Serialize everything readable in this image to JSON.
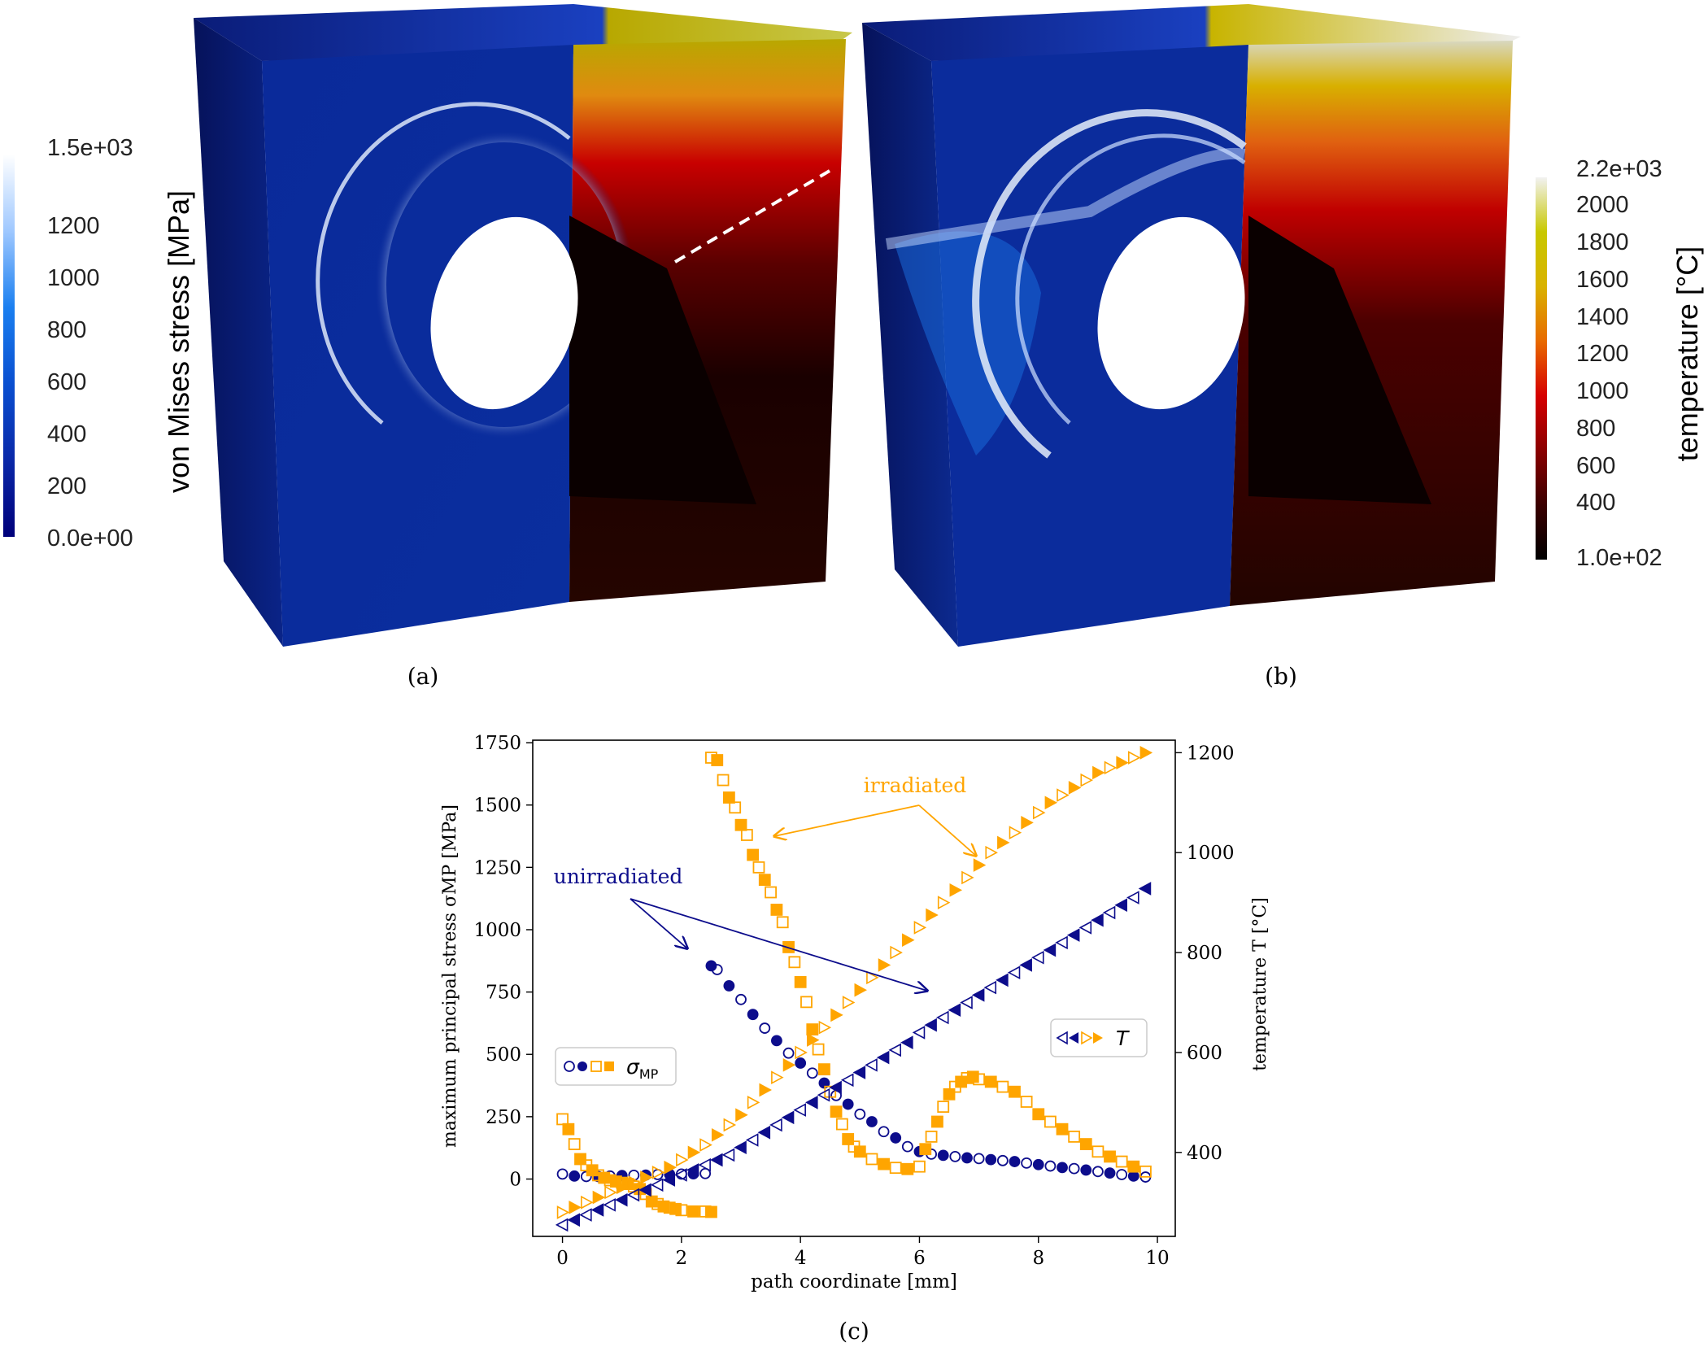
{
  "panel_a": {
    "caption": "(a)",
    "colorbar": {
      "title": "von Mises stress [MPa]",
      "min_label": "0.0e+00",
      "max_label": "1.5e+03",
      "ticks": [
        "1200",
        "1000",
        "800",
        "600",
        "400",
        "200"
      ],
      "colors": [
        "#00007a",
        "#0a28a8",
        "#0a4fd0",
        "#1a7ff0",
        "#9fc8ff",
        "#ffffff"
      ]
    }
  },
  "panel_b": {
    "caption": "(b)",
    "colorbar": {
      "title": "temperature [°C]",
      "min_label": "1.0e+02",
      "max_label": "2.2e+03",
      "ticks": [
        "2000",
        "1800",
        "1600",
        "1400",
        "1200",
        "1000",
        "800",
        "600",
        "400"
      ],
      "colors": [
        "#000000",
        "#3a0000",
        "#8a0000",
        "#d60000",
        "#e86a00",
        "#d9b200",
        "#c8c800",
        "#f2f2f2"
      ]
    }
  },
  "panel_c": {
    "caption": "(c)",
    "annotations": {
      "irradiated": "irradiated",
      "unirradiated": "unirradiated"
    },
    "legend_sigma": "σMP",
    "legend_T": "T"
  },
  "colors": {
    "unirradiated": "#0d0d8c",
    "irradiated": "#ffa500"
  },
  "chart_data": {
    "type": "scatter",
    "xlabel": "path coordinate [mm]",
    "ylabel": "maximum principal stress σMP [MPa]",
    "y2label": "temperature T [°C]",
    "xlim": [
      -0.5,
      10.3
    ],
    "ylim": [
      -230,
      1760
    ],
    "y2lim": [
      232,
      1225
    ],
    "xticks": [
      "0",
      "2",
      "4",
      "6",
      "8",
      "10"
    ],
    "yticks": [
      "0",
      "250",
      "500",
      "750",
      "1000",
      "1250",
      "1500",
      "1750"
    ],
    "y2ticks": [
      "400",
      "600",
      "800",
      "1000",
      "1200"
    ],
    "grid": false,
    "legend": [
      "center-left",
      "center-right"
    ],
    "series": [
      {
        "axis": "left",
        "marker": "circle",
        "color": "#0d0d8c",
        "points": [
          [
            0,
            20
          ],
          [
            0.2,
            12
          ],
          [
            0.4,
            10
          ],
          [
            0.6,
            10
          ],
          [
            0.8,
            12
          ],
          [
            1.0,
            14
          ],
          [
            1.2,
            15
          ],
          [
            1.4,
            16
          ],
          [
            1.6,
            18
          ],
          [
            1.8,
            19
          ],
          [
            2.0,
            20
          ],
          [
            2.2,
            21
          ],
          [
            2.4,
            22
          ],
          [
            2.5,
            855
          ],
          [
            2.6,
            840
          ],
          [
            2.8,
            775
          ],
          [
            3.0,
            720
          ],
          [
            3.2,
            660
          ],
          [
            3.4,
            605
          ],
          [
            3.6,
            555
          ],
          [
            3.8,
            505
          ],
          [
            4.0,
            465
          ],
          [
            4.2,
            425
          ],
          [
            4.4,
            385
          ],
          [
            4.6,
            335
          ],
          [
            4.8,
            300
          ],
          [
            5.0,
            260
          ],
          [
            5.2,
            230
          ],
          [
            5.4,
            190
          ],
          [
            5.6,
            165
          ],
          [
            5.8,
            130
          ],
          [
            6.0,
            110
          ],
          [
            6.2,
            100
          ],
          [
            6.4,
            95
          ],
          [
            6.6,
            90
          ],
          [
            6.8,
            85
          ],
          [
            7.0,
            82
          ],
          [
            7.2,
            78
          ],
          [
            7.4,
            74
          ],
          [
            7.6,
            70
          ],
          [
            7.8,
            64
          ],
          [
            8.0,
            58
          ],
          [
            8.2,
            52
          ],
          [
            8.4,
            46
          ],
          [
            8.6,
            42
          ],
          [
            8.8,
            36
          ],
          [
            9.0,
            30
          ],
          [
            9.2,
            24
          ],
          [
            9.4,
            18
          ],
          [
            9.6,
            12
          ],
          [
            9.8,
            8
          ]
        ]
      },
      {
        "axis": "left",
        "marker": "square",
        "color": "#ffa500",
        "points": [
          [
            0,
            240
          ],
          [
            0.1,
            200
          ],
          [
            0.2,
            140
          ],
          [
            0.3,
            80
          ],
          [
            0.4,
            55
          ],
          [
            0.5,
            35
          ],
          [
            0.6,
            15
          ],
          [
            0.7,
            5
          ],
          [
            0.8,
            -5
          ],
          [
            0.9,
            -10
          ],
          [
            1.0,
            -15
          ],
          [
            1.1,
            -20
          ],
          [
            1.2,
            -30
          ],
          [
            1.3,
            -40
          ],
          [
            1.4,
            -60
          ],
          [
            1.5,
            -90
          ],
          [
            1.6,
            -100
          ],
          [
            1.7,
            -110
          ],
          [
            1.8,
            -115
          ],
          [
            1.9,
            -120
          ],
          [
            2.0,
            -125
          ],
          [
            2.2,
            -130
          ],
          [
            2.4,
            -130
          ],
          [
            2.5,
            -132
          ],
          [
            2.5,
            1690
          ],
          [
            2.6,
            1680
          ],
          [
            2.7,
            1600
          ],
          [
            2.8,
            1530
          ],
          [
            2.9,
            1490
          ],
          [
            3.0,
            1420
          ],
          [
            3.1,
            1380
          ],
          [
            3.2,
            1300
          ],
          [
            3.3,
            1250
          ],
          [
            3.4,
            1200
          ],
          [
            3.5,
            1150
          ],
          [
            3.6,
            1080
          ],
          [
            3.7,
            1030
          ],
          [
            3.8,
            930
          ],
          [
            3.9,
            870
          ],
          [
            4.0,
            790
          ],
          [
            4.1,
            710
          ],
          [
            4.2,
            600
          ],
          [
            4.3,
            520
          ],
          [
            4.4,
            440
          ],
          [
            4.5,
            350
          ],
          [
            4.6,
            270
          ],
          [
            4.7,
            220
          ],
          [
            4.8,
            160
          ],
          [
            4.9,
            130
          ],
          [
            5.0,
            110
          ],
          [
            5.2,
            80
          ],
          [
            5.4,
            60
          ],
          [
            5.6,
            45
          ],
          [
            5.8,
            40
          ],
          [
            6.0,
            50
          ],
          [
            6.1,
            120
          ],
          [
            6.2,
            170
          ],
          [
            6.3,
            230
          ],
          [
            6.4,
            290
          ],
          [
            6.5,
            340
          ],
          [
            6.6,
            370
          ],
          [
            6.7,
            390
          ],
          [
            6.8,
            405
          ],
          [
            6.9,
            410
          ],
          [
            7.0,
            400
          ],
          [
            7.2,
            390
          ],
          [
            7.4,
            370
          ],
          [
            7.6,
            350
          ],
          [
            7.8,
            310
          ],
          [
            8.0,
            260
          ],
          [
            8.2,
            230
          ],
          [
            8.4,
            200
          ],
          [
            8.6,
            170
          ],
          [
            8.8,
            140
          ],
          [
            9.0,
            110
          ],
          [
            9.2,
            90
          ],
          [
            9.4,
            70
          ],
          [
            9.6,
            50
          ],
          [
            9.8,
            30
          ]
        ]
      },
      {
        "axis": "right",
        "marker": "triangle",
        "color": "#0d0d8c",
        "points": [
          [
            0,
            255
          ],
          [
            0.2,
            265
          ],
          [
            0.4,
            275
          ],
          [
            0.6,
            285
          ],
          [
            0.8,
            295
          ],
          [
            1.0,
            305
          ],
          [
            1.2,
            315
          ],
          [
            1.4,
            325
          ],
          [
            1.6,
            335
          ],
          [
            1.8,
            345
          ],
          [
            2.0,
            355
          ],
          [
            2.2,
            365
          ],
          [
            2.4,
            375
          ],
          [
            2.6,
            385
          ],
          [
            2.8,
            395
          ],
          [
            3.0,
            410
          ],
          [
            3.2,
            425
          ],
          [
            3.4,
            440
          ],
          [
            3.6,
            455
          ],
          [
            3.8,
            470
          ],
          [
            4.0,
            485
          ],
          [
            4.2,
            500
          ],
          [
            4.4,
            515
          ],
          [
            4.6,
            530
          ],
          [
            4.8,
            545
          ],
          [
            5.0,
            560
          ],
          [
            5.2,
            575
          ],
          [
            5.4,
            590
          ],
          [
            5.6,
            605
          ],
          [
            5.8,
            620
          ],
          [
            6.0,
            640
          ],
          [
            6.2,
            655
          ],
          [
            6.4,
            670
          ],
          [
            6.6,
            685
          ],
          [
            6.8,
            700
          ],
          [
            7.0,
            715
          ],
          [
            7.2,
            730
          ],
          [
            7.4,
            745
          ],
          [
            7.6,
            760
          ],
          [
            7.8,
            775
          ],
          [
            8.0,
            790
          ],
          [
            8.2,
            805
          ],
          [
            8.4,
            820
          ],
          [
            8.6,
            835
          ],
          [
            8.8,
            850
          ],
          [
            9.0,
            865
          ],
          [
            9.2,
            880
          ],
          [
            9.4,
            895
          ],
          [
            9.6,
            910
          ],
          [
            9.8,
            928
          ]
        ]
      },
      {
        "axis": "right",
        "marker": "triangle",
        "color": "#ffa500",
        "points": [
          [
            0,
            280
          ],
          [
            0.2,
            290
          ],
          [
            0.4,
            300
          ],
          [
            0.6,
            310
          ],
          [
            0.8,
            320
          ],
          [
            1.0,
            330
          ],
          [
            1.2,
            340
          ],
          [
            1.4,
            350
          ],
          [
            1.6,
            360
          ],
          [
            1.8,
            370
          ],
          [
            2.0,
            385
          ],
          [
            2.2,
            400
          ],
          [
            2.4,
            415
          ],
          [
            2.6,
            435
          ],
          [
            2.8,
            455
          ],
          [
            3.0,
            475
          ],
          [
            3.2,
            500
          ],
          [
            3.4,
            525
          ],
          [
            3.6,
            550
          ],
          [
            3.8,
            575
          ],
          [
            4.0,
            600
          ],
          [
            4.2,
            625
          ],
          [
            4.4,
            650
          ],
          [
            4.6,
            675
          ],
          [
            4.8,
            700
          ],
          [
            5.0,
            725
          ],
          [
            5.2,
            750
          ],
          [
            5.4,
            775
          ],
          [
            5.6,
            800
          ],
          [
            5.8,
            825
          ],
          [
            6.0,
            850
          ],
          [
            6.2,
            875
          ],
          [
            6.4,
            900
          ],
          [
            6.6,
            925
          ],
          [
            6.8,
            950
          ],
          [
            7.0,
            975
          ],
          [
            7.2,
            1000
          ],
          [
            7.4,
            1020
          ],
          [
            7.6,
            1040
          ],
          [
            7.8,
            1060
          ],
          [
            8.0,
            1080
          ],
          [
            8.2,
            1100
          ],
          [
            8.4,
            1115
          ],
          [
            8.6,
            1130
          ],
          [
            8.8,
            1145
          ],
          [
            9.0,
            1160
          ],
          [
            9.2,
            1170
          ],
          [
            9.4,
            1180
          ],
          [
            9.6,
            1190
          ],
          [
            9.8,
            1200
          ]
        ]
      }
    ]
  }
}
